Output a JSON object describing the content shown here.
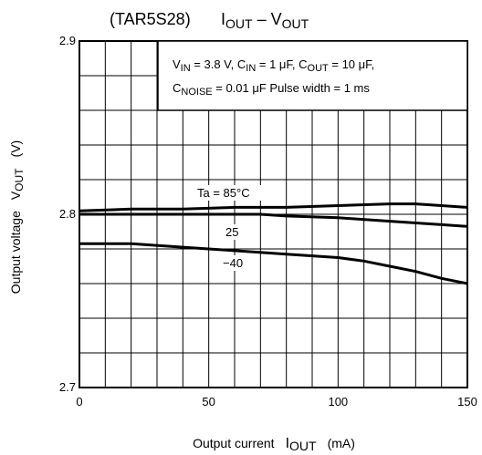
{
  "chart_data": {
    "type": "line",
    "part_label": "(TAR5S28)",
    "title": {
      "main": "I",
      "main_sub": "OUT",
      "dash": " – V",
      "dash_sub": "OUT"
    },
    "xlabel": {
      "main": "Output current",
      "symbol": "I",
      "symbol_sub": "OUT",
      "unit": "(mA)"
    },
    "ylabel": {
      "main": "Output voltage",
      "symbol": "V",
      "symbol_sub": "OUT",
      "unit": "(V)"
    },
    "xlim": [
      0,
      150
    ],
    "ylim": [
      2.7,
      2.9
    ],
    "x_ticks": [
      {
        "v": 0,
        "label": "0"
      },
      {
        "v": 50,
        "label": "50"
      },
      {
        "v": 100,
        "label": "100"
      },
      {
        "v": 150,
        "label": "150"
      }
    ],
    "y_ticks": [
      {
        "v": 2.7,
        "label": "2.7"
      },
      {
        "v": 2.8,
        "label": "2.8"
      },
      {
        "v": 2.9,
        "label": "2.9"
      }
    ],
    "grid": true,
    "grid_divisions": {
      "x": 15,
      "y": 10
    },
    "conditions": {
      "line1": [
        {
          "text": "V",
          "sub": "IN",
          "after": " = 3.8 V, C"
        },
        {
          "text": "",
          "sub": "IN",
          "after": " = 1 μF, C"
        },
        {
          "text": "",
          "sub": "OUT",
          "after": " = 10 μF,"
        }
      ],
      "line2": [
        {
          "text": "C",
          "sub": "NOISE",
          "after": " = 0.01 μF   Pulse width = 1 ms"
        }
      ]
    },
    "series": [
      {
        "name": "Ta = 85°C",
        "x": [
          0,
          20,
          40,
          60,
          80,
          100,
          120,
          130,
          140,
          150
        ],
        "y": [
          2.802,
          2.803,
          2.803,
          2.804,
          2.804,
          2.805,
          2.806,
          2.806,
          2.805,
          2.804
        ]
      },
      {
        "name": "25",
        "x": [
          0,
          20,
          40,
          60,
          70,
          80,
          100,
          120,
          140,
          150
        ],
        "y": [
          2.8,
          2.8,
          2.8,
          2.8,
          2.8,
          2.799,
          2.798,
          2.796,
          2.794,
          2.793
        ]
      },
      {
        "name": "−40",
        "x": [
          0,
          20,
          40,
          60,
          80,
          100,
          110,
          120,
          130,
          140,
          150
        ],
        "y": [
          2.783,
          2.783,
          2.781,
          2.779,
          2.777,
          2.775,
          2.773,
          2.77,
          2.767,
          2.763,
          2.76
        ]
      }
    ],
    "series_label_text": [
      "Ta = 85°C",
      "25",
      "−40"
    ]
  }
}
